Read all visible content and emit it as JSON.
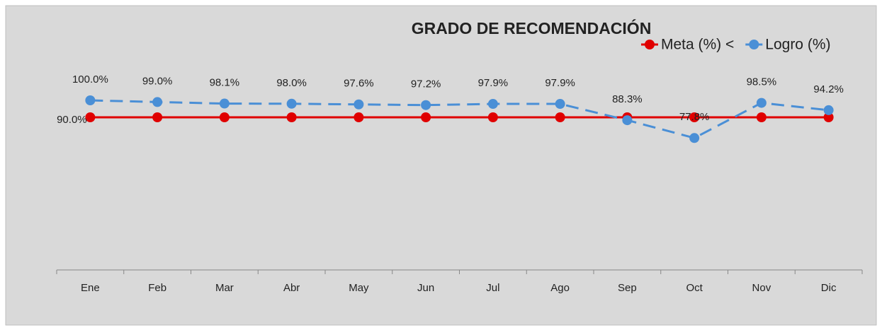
{
  "chart_data": {
    "type": "line",
    "title": "GRADO DE RECOMENDACIÓN",
    "categories": [
      "Ene",
      "Feb",
      "Mar",
      "Abr",
      "May",
      "Jun",
      "Jul",
      "Ago",
      "Sep",
      "Oct",
      "Nov",
      "Dic"
    ],
    "ylim": [
      0,
      110
    ],
    "series": [
      {
        "name": "Meta (%) <",
        "color": "#e00000",
        "dashed": false,
        "values": [
          90,
          90,
          90,
          90,
          90,
          90,
          90,
          90,
          90,
          90,
          90,
          90
        ],
        "value_labels": [
          "90.0%",
          null,
          null,
          null,
          null,
          null,
          null,
          null,
          null,
          null,
          null,
          null
        ]
      },
      {
        "name": "Logro (%)",
        "color": "#4a8fd6",
        "dashed": true,
        "values": [
          100,
          99,
          98.1,
          98,
          97.6,
          97.2,
          97.9,
          97.9,
          88.3,
          77.8,
          98.5,
          94.2
        ],
        "value_labels": [
          "100.0%",
          "99.0%",
          "98.1%",
          "98.0%",
          "97.6%",
          "97.2%",
          "97.9%",
          "97.9%",
          "88.3%",
          "77.8%",
          "98.5%",
          "94.2%"
        ]
      }
    ]
  }
}
